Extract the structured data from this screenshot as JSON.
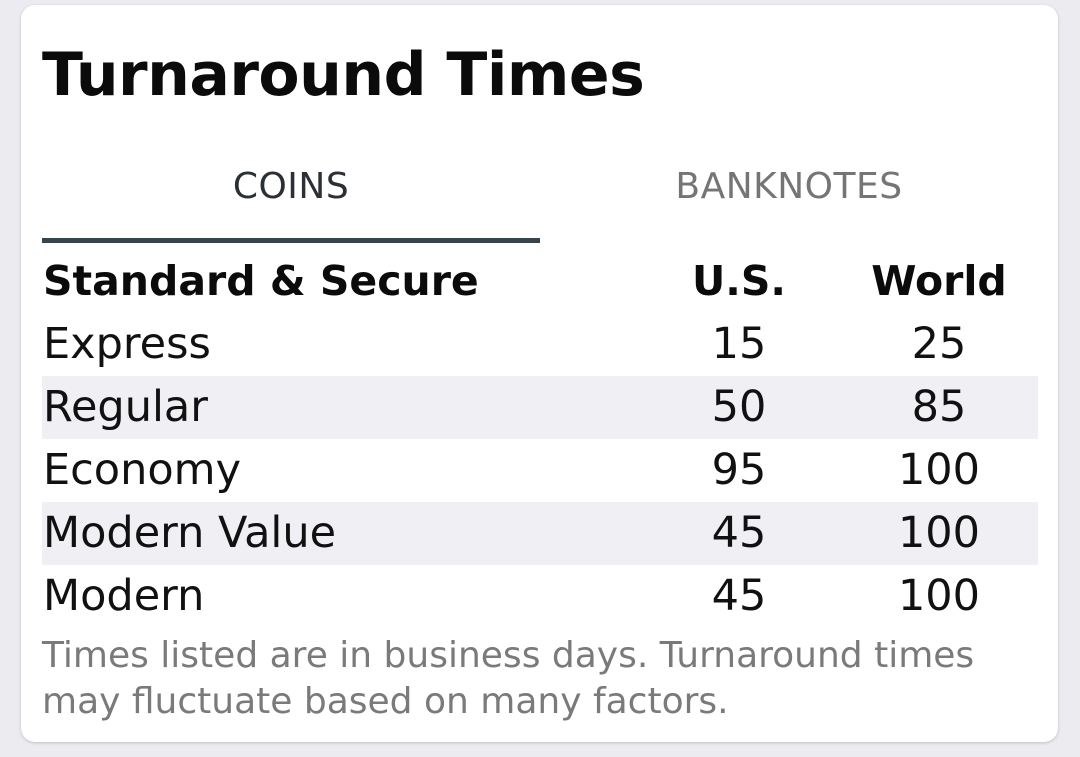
{
  "card": {
    "title": "Turnaround Times"
  },
  "tabs": [
    {
      "label": "COINS",
      "selected": true
    },
    {
      "label": "BANKNOTES",
      "selected": false
    }
  ],
  "table": {
    "headers": {
      "name": "Standard & Secure",
      "us": "U.S.",
      "world": "World"
    },
    "rows": [
      {
        "name": "Express",
        "us": "15",
        "world": "25"
      },
      {
        "name": "Regular",
        "us": "50",
        "world": "85"
      },
      {
        "name": "Economy",
        "us": "95",
        "world": "100"
      },
      {
        "name": "Modern Value",
        "us": "45",
        "world": "100"
      },
      {
        "name": "Modern",
        "us": "45",
        "world": "100"
      }
    ]
  },
  "footnote": "Times listed are in business days. Turnaround times may fluctuate based on many factors.",
  "colors": {
    "background": "#ebebf0",
    "card": "#ffffff",
    "tab_indicator": "#34454f",
    "row_shade": "#f0f0f4",
    "footnote_text": "#7a7a7a"
  }
}
